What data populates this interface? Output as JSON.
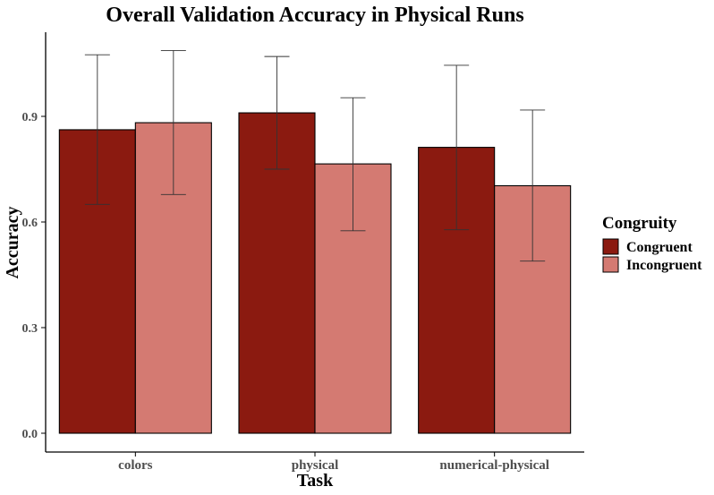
{
  "chart_data": {
    "type": "bar",
    "title": "Overall Validation Accuracy in Physical Runs",
    "xlabel": "Task",
    "ylabel": "Accuracy",
    "categories": [
      "colors",
      "physical",
      "numerical-physical"
    ],
    "ylim": [
      0,
      1.12
    ],
    "yticks": [
      0.0,
      0.3,
      0.6,
      0.9
    ],
    "ytick_labels": [
      "0.0",
      "0.3",
      "0.6",
      "0.9"
    ],
    "grid": false,
    "legend": {
      "title": "Congruity",
      "placement": "right"
    },
    "series": [
      {
        "name": "Congruent",
        "color": "#8b1a10",
        "values": [
          0.862,
          0.91,
          0.812
        ],
        "error_low": [
          0.65,
          0.75,
          0.578
        ],
        "error_high": [
          1.075,
          1.07,
          1.045
        ]
      },
      {
        "name": "Incongruent",
        "color": "#d47a72",
        "values": [
          0.882,
          0.765,
          0.703
        ],
        "error_low": [
          0.678,
          0.575,
          0.489
        ],
        "error_high": [
          1.087,
          0.953,
          0.918
        ]
      }
    ]
  }
}
